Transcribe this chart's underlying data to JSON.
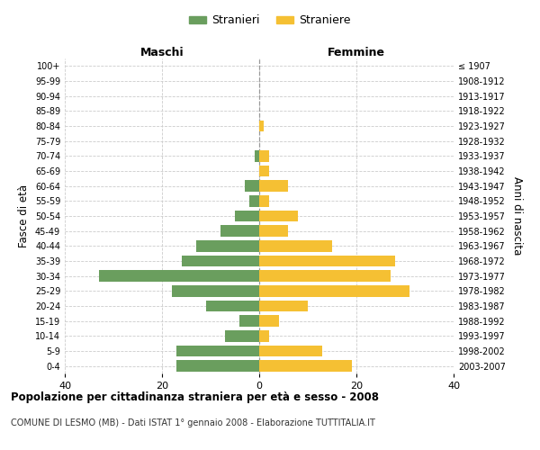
{
  "age_groups": [
    "100+",
    "95-99",
    "90-94",
    "85-89",
    "80-84",
    "75-79",
    "70-74",
    "65-69",
    "60-64",
    "55-59",
    "50-54",
    "45-49",
    "40-44",
    "35-39",
    "30-34",
    "25-29",
    "20-24",
    "15-19",
    "10-14",
    "5-9",
    "0-4"
  ],
  "birth_years": [
    "≤ 1907",
    "1908-1912",
    "1913-1917",
    "1918-1922",
    "1923-1927",
    "1928-1932",
    "1933-1937",
    "1938-1942",
    "1943-1947",
    "1948-1952",
    "1953-1957",
    "1958-1962",
    "1963-1967",
    "1968-1972",
    "1973-1977",
    "1978-1982",
    "1983-1987",
    "1988-1992",
    "1993-1997",
    "1998-2002",
    "2003-2007"
  ],
  "maschi": [
    0,
    0,
    0,
    0,
    0,
    0,
    1,
    0,
    3,
    2,
    5,
    8,
    13,
    16,
    33,
    18,
    11,
    4,
    7,
    17,
    17
  ],
  "femmine": [
    0,
    0,
    0,
    0,
    1,
    0,
    2,
    2,
    6,
    2,
    8,
    6,
    15,
    28,
    27,
    31,
    10,
    4,
    2,
    13,
    19
  ],
  "color_maschi": "#6a9e5e",
  "color_femmine": "#f5c033",
  "title_main": "Popolazione per cittadinanza straniera per età e sesso - 2008",
  "title_sub": "COMUNE DI LESMO (MB) - Dati ISTAT 1° gennaio 2008 - Elaborazione TUTTITALIA.IT",
  "ylabel_left": "Fasce di età",
  "ylabel_right": "Anni di nascita",
  "xlabel_left": "Maschi",
  "xlabel_right": "Femmine",
  "legend_maschi": "Stranieri",
  "legend_femmine": "Straniere",
  "xlim": [
    -40,
    40
  ],
  "xticks": [
    -40,
    -20,
    0,
    20,
    40
  ],
  "xticklabels": [
    "40",
    "20",
    "0",
    "20",
    "40"
  ],
  "background_color": "#ffffff",
  "grid_color": "#cccccc",
  "bar_height": 0.75
}
